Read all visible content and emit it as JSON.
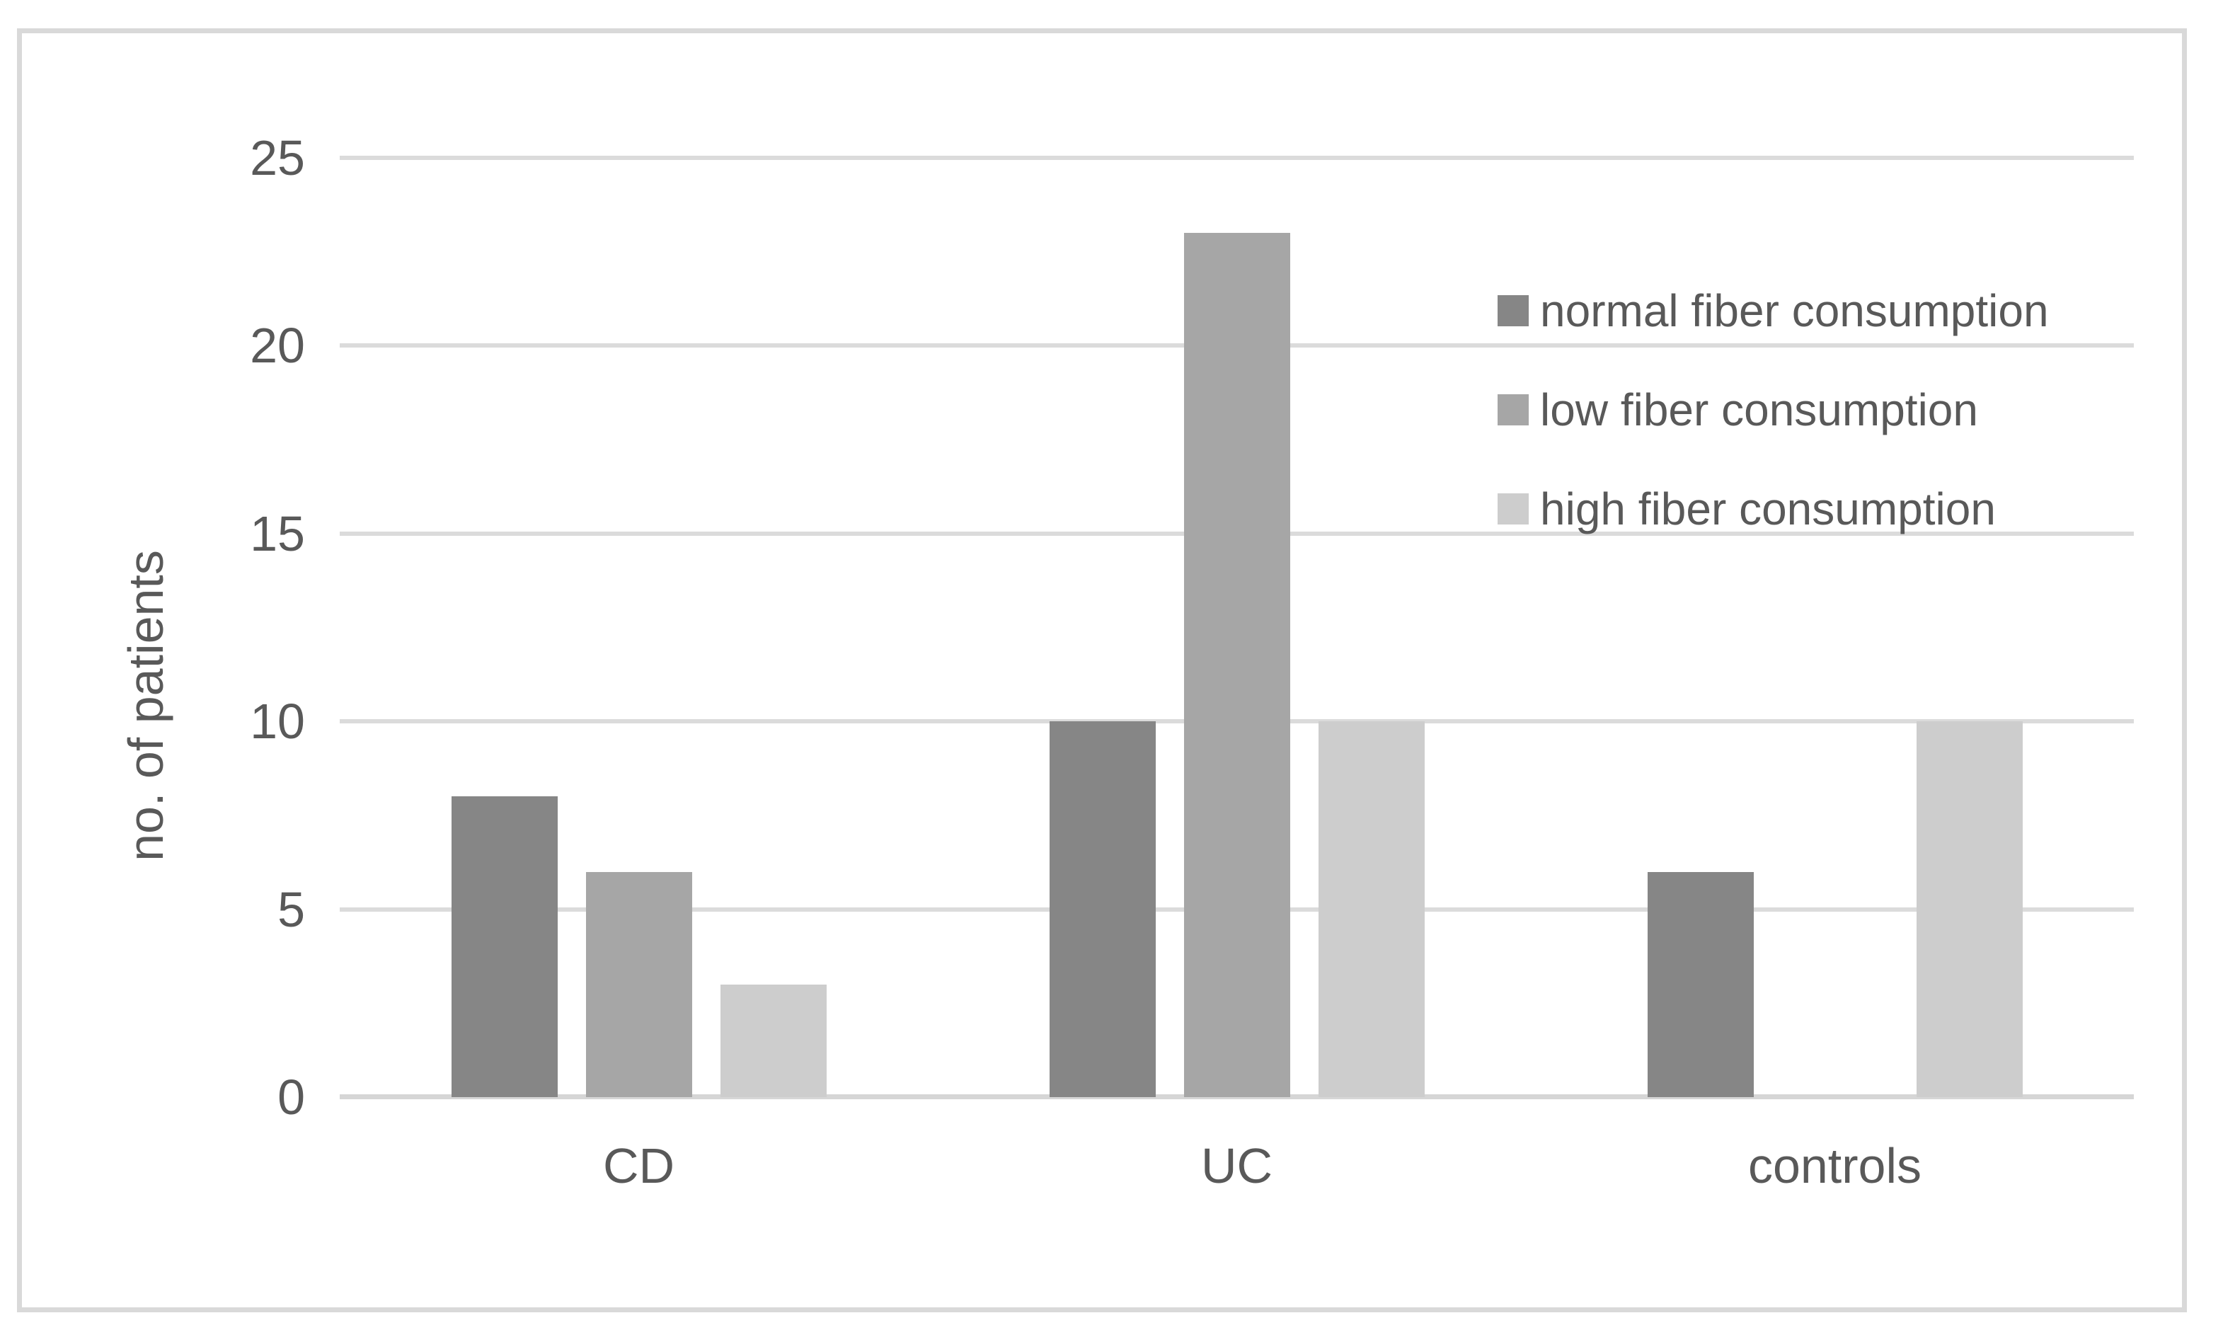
{
  "chart_data": {
    "type": "bar",
    "title": "",
    "xlabel": "",
    "ylabel": "no. of patients",
    "categories": [
      "CD",
      "UC",
      "controls"
    ],
    "series": [
      {
        "name": "normal fiber consumption",
        "color": "#868686",
        "values": [
          8,
          10,
          6
        ]
      },
      {
        "name": "low fiber consumption",
        "color": "#a6a6a6",
        "values": [
          6,
          23,
          0
        ]
      },
      {
        "name": "high fiber consumption",
        "color": "#cdcdcd",
        "values": [
          3,
          10,
          10
        ]
      }
    ],
    "ylim": [
      0,
      25
    ],
    "yticks": [
      0,
      5,
      10,
      15,
      20,
      25
    ],
    "grid": true,
    "legend_position": "inside-top-right"
  },
  "colors": {
    "text": "#595959",
    "gridline": "#dbdbdb",
    "axis_line": "#d6d6d6",
    "frame_border": "#d9d9d9",
    "background": "#ffffff"
  }
}
